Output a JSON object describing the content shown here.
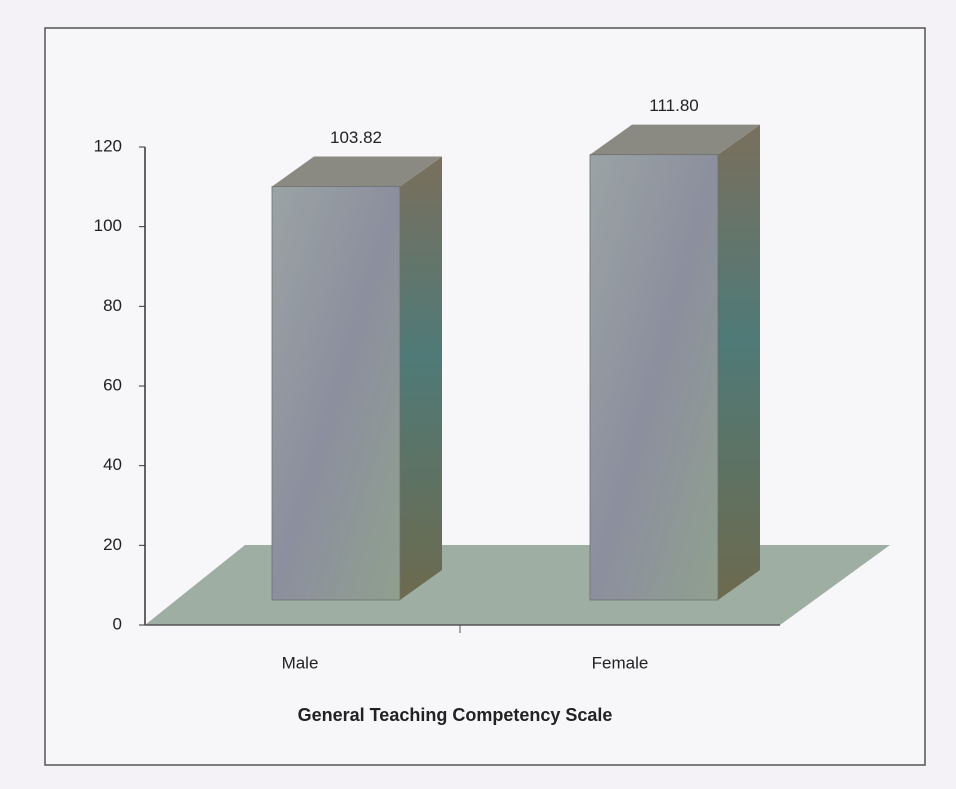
{
  "chart_data": {
    "type": "bar3d",
    "categories": [
      "Male",
      "Female"
    ],
    "values": [
      103.82,
      111.8
    ],
    "value_labels": [
      "103.82",
      "111.80"
    ],
    "x_label": "General Teaching Competency Scale",
    "ylim": [
      0,
      120
    ],
    "yticks": [
      0,
      20,
      40,
      60,
      80,
      100,
      120
    ],
    "color": "#8e9996"
  }
}
